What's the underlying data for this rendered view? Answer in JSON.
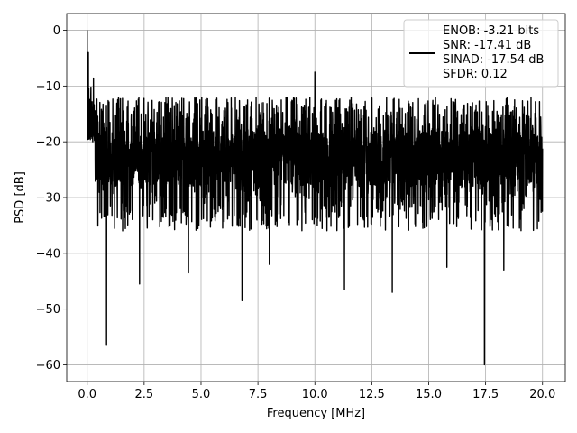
{
  "chart_data": {
    "type": "line",
    "xlabel": "Frequency [MHz]",
    "ylabel": "PSD [dB]",
    "xlim": [
      -0.9,
      21.0
    ],
    "ylim": [
      -63.0,
      3.0
    ],
    "xticks": [
      0.0,
      2.5,
      5.0,
      7.5,
      10.0,
      12.5,
      15.0,
      17.5,
      20.0
    ],
    "xtick_labels": [
      "0.0",
      "2.5",
      "5.0",
      "7.5",
      "10.0",
      "12.5",
      "15.0",
      "17.5",
      "20.0"
    ],
    "yticks": [
      0,
      -10,
      -20,
      -30,
      -40,
      -50,
      -60
    ],
    "ytick_labels": [
      "0",
      "−10",
      "−20",
      "−30",
      "−40",
      "−50",
      "−60"
    ],
    "grid": true,
    "legend_position": "top-right",
    "series": [
      {
        "name": "ENOB: -3.21 bits\nSNR: -17.41 dB\nSINAD: -17.54 dB\nSFDR: 0.12",
        "color": "#000000",
        "x_range": [
          0.0,
          20.0
        ],
        "noise_floor": {
          "mean": -23,
          "upper": -12,
          "lower": -36
        },
        "peaks": [
          {
            "x": 0.0,
            "y": 0.0
          },
          {
            "x": 0.05,
            "y": -4.0
          },
          {
            "x": 10.0,
            "y": -7.5
          }
        ],
        "dips": [
          {
            "x": 0.85,
            "y": -56.5
          },
          {
            "x": 2.3,
            "y": -45.5
          },
          {
            "x": 4.45,
            "y": -43.5
          },
          {
            "x": 6.8,
            "y": -48.5
          },
          {
            "x": 8.0,
            "y": -42.0
          },
          {
            "x": 11.3,
            "y": -46.5
          },
          {
            "x": 13.4,
            "y": -47.0
          },
          {
            "x": 15.8,
            "y": -42.5
          },
          {
            "x": 17.45,
            "y": -60.0
          },
          {
            "x": 18.3,
            "y": -43.0
          }
        ]
      }
    ]
  }
}
